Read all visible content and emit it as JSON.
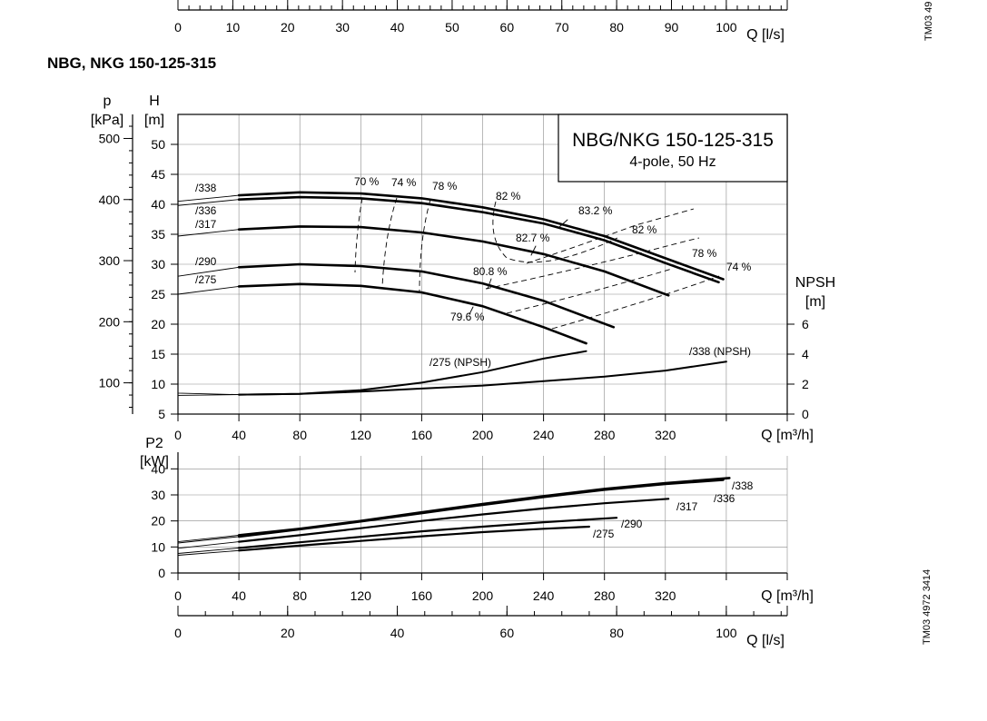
{
  "page_title": "NBG, NKG 150-125-315",
  "legend_box": {
    "line1": "NBG/NKG 150-125-315",
    "line2": "4-pole, 50 Hz"
  },
  "drawing_ids": {
    "top": "TM03 49",
    "bottom": "TM03 4972 3414"
  },
  "colors": {
    "line": "#000000",
    "grid": "#8a8a8a",
    "background": "#ffffff"
  },
  "chart_data": [
    {
      "type": "line",
      "id": "head",
      "x_unit": "Q [m³/h]",
      "xlim": [
        0,
        400
      ],
      "x_ticks": [
        0,
        40,
        80,
        120,
        160,
        200,
        240,
        280,
        320,
        360,
        400
      ],
      "x_tick_labels": [
        "0",
        "40",
        "80",
        "120",
        "160",
        "200",
        "240",
        "280",
        "320",
        "",
        "Q [m³/h]"
      ],
      "ylabel_left": {
        "symbol": "H",
        "unit": "[m]"
      },
      "ylim": [
        5,
        55
      ],
      "y_ticks": [
        5,
        10,
        15,
        20,
        25,
        30,
        35,
        40,
        45,
        50
      ],
      "y_tick_labels": [
        "5",
        "10",
        "15",
        "20",
        "25",
        "30",
        "35",
        "40",
        "45",
        "50"
      ],
      "secondary_pressure": {
        "symbol": "p",
        "unit": "[kPa]",
        "ticks": [
          100,
          200,
          300,
          400,
          500
        ],
        "tick_labels": [
          "100",
          "200",
          "300",
          "400",
          "500"
        ]
      },
      "grid": true,
      "series": [
        {
          "name": "/338",
          "x": [
            -80,
            0,
            40,
            80,
            120,
            160,
            200,
            240,
            280,
            320,
            358
          ],
          "y": [
            38.5,
            40.5,
            41.5,
            42.0,
            41.8,
            41.0,
            39.5,
            37.5,
            34.7,
            31.0,
            27.5
          ]
        },
        {
          "name": "/336",
          "x": [
            -80,
            0,
            40,
            80,
            120,
            160,
            200,
            240,
            280,
            320,
            355
          ],
          "y": [
            37.5,
            39.8,
            40.8,
            41.2,
            41.0,
            40.2,
            38.7,
            36.8,
            34.0,
            30.2,
            27.0
          ]
        },
        {
          "name": "/317",
          "x": [
            -80,
            0,
            40,
            80,
            120,
            160,
            200,
            240,
            280,
            322
          ],
          "y": [
            33.0,
            34.7,
            35.8,
            36.3,
            36.2,
            35.3,
            33.8,
            31.7,
            28.8,
            24.8
          ]
        },
        {
          "name": "/290",
          "x": [
            -80,
            0,
            40,
            80,
            120,
            160,
            200,
            240,
            286
          ],
          "y": [
            26.5,
            28.0,
            29.5,
            30.0,
            29.7,
            28.8,
            26.8,
            23.9,
            19.5
          ]
        },
        {
          "name": "/275",
          "x": [
            -80,
            0,
            40,
            80,
            120,
            160,
            200,
            240,
            268
          ],
          "y": [
            23.0,
            25.0,
            26.3,
            26.7,
            26.4,
            25.3,
            23.0,
            19.5,
            16.8
          ]
        }
      ],
      "efficiency_labels": [
        "70 %",
        "74 %",
        "78 %",
        "82 %",
        "83.2 %",
        "82.7 %",
        "82 %",
        "80.8 %",
        "78 %",
        "79.6 %",
        "74 %"
      ]
    },
    {
      "type": "line",
      "id": "npsh",
      "ylabel_right": {
        "symbol": "NPSH",
        "unit": "[m]"
      },
      "ylim": [
        0,
        6
      ],
      "y_ticks": [
        0,
        2,
        4,
        6
      ],
      "y_tick_labels": [
        "0",
        "2",
        "4",
        "6"
      ],
      "series": [
        {
          "name": "/275 (NPSH)",
          "x": [
            -80,
            0,
            40,
            80,
            120,
            160,
            200,
            240,
            268
          ],
          "y": [
            1.6,
            1.4,
            1.3,
            1.35,
            1.6,
            2.1,
            2.8,
            3.7,
            4.2
          ]
        },
        {
          "name": "/338 (NPSH)",
          "x": [
            -80,
            0,
            40,
            80,
            120,
            160,
            200,
            240,
            280,
            320,
            360
          ],
          "y": [
            1.2,
            1.25,
            1.3,
            1.35,
            1.5,
            1.7,
            1.9,
            2.2,
            2.5,
            2.9,
            3.5
          ]
        }
      ]
    },
    {
      "type": "line",
      "id": "power",
      "ylabel_left": {
        "symbol": "P2",
        "unit": "[kW]"
      },
      "xlim": [
        0,
        400
      ],
      "x_ticks": [
        0,
        40,
        80,
        120,
        160,
        200,
        240,
        280,
        320,
        360,
        400
      ],
      "x_tick_labels": [
        "0",
        "40",
        "80",
        "120",
        "160",
        "200",
        "240",
        "280",
        "320",
        "",
        "Q [m³/h]"
      ],
      "ylim": [
        0,
        45
      ],
      "y_ticks": [
        0,
        10,
        20,
        30,
        40
      ],
      "y_tick_labels": [
        "0",
        "10",
        "20",
        "30",
        "40"
      ],
      "grid": true,
      "series": [
        {
          "name": "/338",
          "x": [
            -80,
            0,
            40,
            80,
            120,
            160,
            200,
            240,
            280,
            320,
            362
          ],
          "y": [
            9.0,
            12.0,
            14.5,
            17.0,
            20.0,
            23.3,
            26.5,
            29.5,
            32.3,
            34.5,
            36.5
          ]
        },
        {
          "name": "/336",
          "x": [
            -80,
            0,
            40,
            80,
            120,
            160,
            200,
            240,
            280,
            320,
            358
          ],
          "y": [
            8.5,
            11.5,
            14.0,
            16.8,
            19.8,
            23.0,
            26.2,
            29.2,
            32.0,
            34.2,
            35.8
          ]
        },
        {
          "name": "/317",
          "x": [
            -80,
            0,
            40,
            80,
            120,
            160,
            200,
            240,
            280,
            322
          ],
          "y": [
            7.0,
            9.5,
            12.0,
            14.5,
            17.2,
            20.0,
            22.5,
            24.8,
            26.8,
            28.5
          ]
        },
        {
          "name": "/290",
          "x": [
            -80,
            0,
            40,
            80,
            120,
            160,
            200,
            240,
            288
          ],
          "y": [
            5.5,
            7.5,
            9.6,
            11.8,
            13.9,
            16.0,
            17.8,
            19.5,
            21.2
          ]
        },
        {
          "name": "/275",
          "x": [
            -80,
            0,
            40,
            80,
            120,
            160,
            200,
            240,
            270
          ],
          "y": [
            5.0,
            6.8,
            8.6,
            10.5,
            12.3,
            14.1,
            15.7,
            17.0,
            17.8
          ]
        }
      ]
    }
  ],
  "flow_ls_axes": {
    "top": {
      "ticks": [
        0,
        10,
        20,
        30,
        40,
        50,
        60,
        70,
        80,
        90,
        100
      ],
      "tick_labels": [
        "0",
        "10",
        "20",
        "30",
        "40",
        "50",
        "60",
        "70",
        "80",
        "90",
        "100"
      ],
      "unit": "Q [l/s]"
    },
    "bottom": {
      "ticks": [
        0,
        20,
        40,
        60,
        80,
        100
      ],
      "tick_labels": [
        "0",
        "20",
        "40",
        "60",
        "80",
        "100"
      ],
      "unit": "Q [l/s]"
    }
  }
}
